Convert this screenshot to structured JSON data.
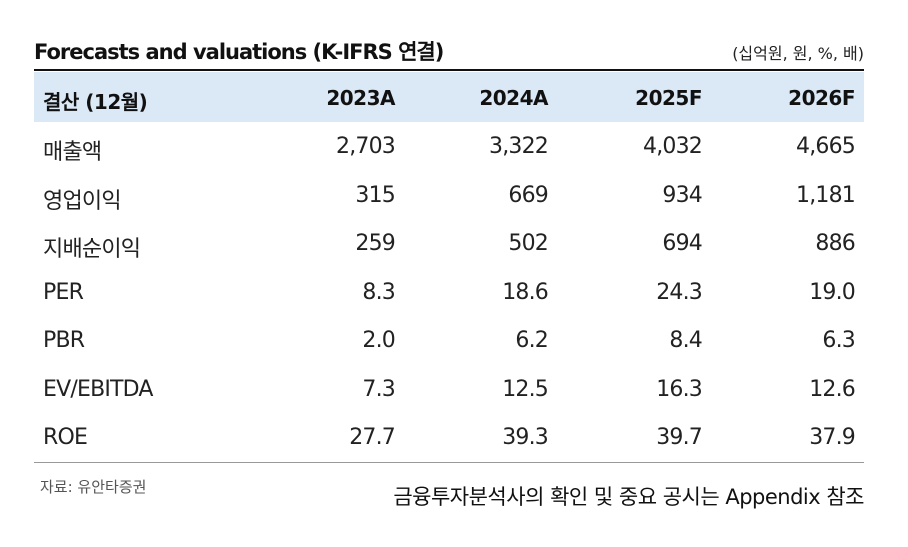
{
  "title": "Forecasts and valuations (K-IFRS 연결)",
  "unit_note": "(십억원, 원, %, 배)",
  "table": {
    "headers": [
      "결산 (12월)",
      "2023A",
      "2024A",
      "2025F",
      "2026F"
    ],
    "rows": [
      [
        "매출액",
        "2,703",
        "3,322",
        "4,032",
        "4,665"
      ],
      [
        "영업이익",
        "315",
        "669",
        "934",
        "1,181"
      ],
      [
        "지배순이익",
        "259",
        "502",
        "694",
        "886"
      ],
      [
        "PER",
        "8.3",
        "18.6",
        "24.3",
        "19.0"
      ],
      [
        "PBR",
        "2.0",
        "6.2",
        "8.4",
        "6.3"
      ],
      [
        "EV/EBITDA",
        "7.3",
        "12.5",
        "16.3",
        "12.6"
      ],
      [
        "ROE",
        "27.7",
        "39.3",
        "39.7",
        "37.9"
      ]
    ]
  },
  "source": "자료: 유안타증권",
  "disclaimer": "금융투자분석사의 확인 및 중요 공시는 Appendix 참조",
  "colors": {
    "header_bg": "#dbe8f6",
    "rule": "#111111"
  }
}
